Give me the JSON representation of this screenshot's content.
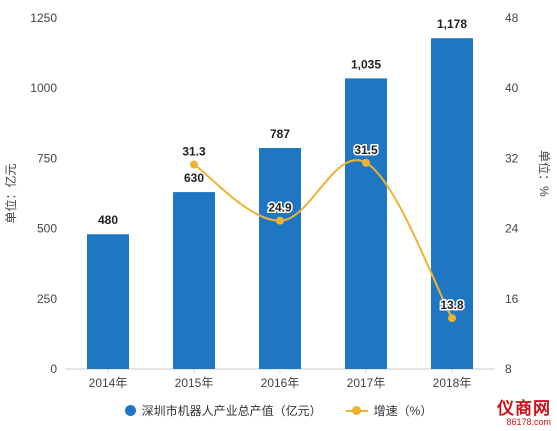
{
  "chart_data": {
    "type": "bar",
    "categories": [
      "2014年",
      "2015年",
      "2016年",
      "2017年",
      "2018年"
    ],
    "series": [
      {
        "name": "深圳市机器人产业总产值（亿元）",
        "type": "bar",
        "axis": "left",
        "values": [
          480,
          630,
          787,
          1035,
          1178
        ],
        "value_labels": [
          "480",
          "630",
          "787",
          "1,035",
          "1,178"
        ],
        "color": "#1f77c4"
      },
      {
        "name": "增速（%）",
        "type": "line",
        "axis": "right",
        "values": [
          null,
          31.3,
          24.9,
          31.5,
          13.8
        ],
        "value_labels": [
          "",
          "31.3",
          "24.9",
          "31.5",
          "13.8"
        ],
        "color": "#f0b232"
      }
    ],
    "ylabel": "单位：亿元",
    "y2label": "单位：%",
    "ylim": [
      0,
      1250
    ],
    "yticks": [
      "0",
      "250",
      "500",
      "750",
      "1000",
      "1250"
    ],
    "y2lim": [
      8,
      48
    ],
    "y2ticks": [
      "8",
      "16",
      "24",
      "32",
      "40",
      "48"
    ],
    "grid": false,
    "legend_position": "bottom"
  },
  "logo": {
    "main": "仪商网",
    "sub": "86178.com"
  }
}
